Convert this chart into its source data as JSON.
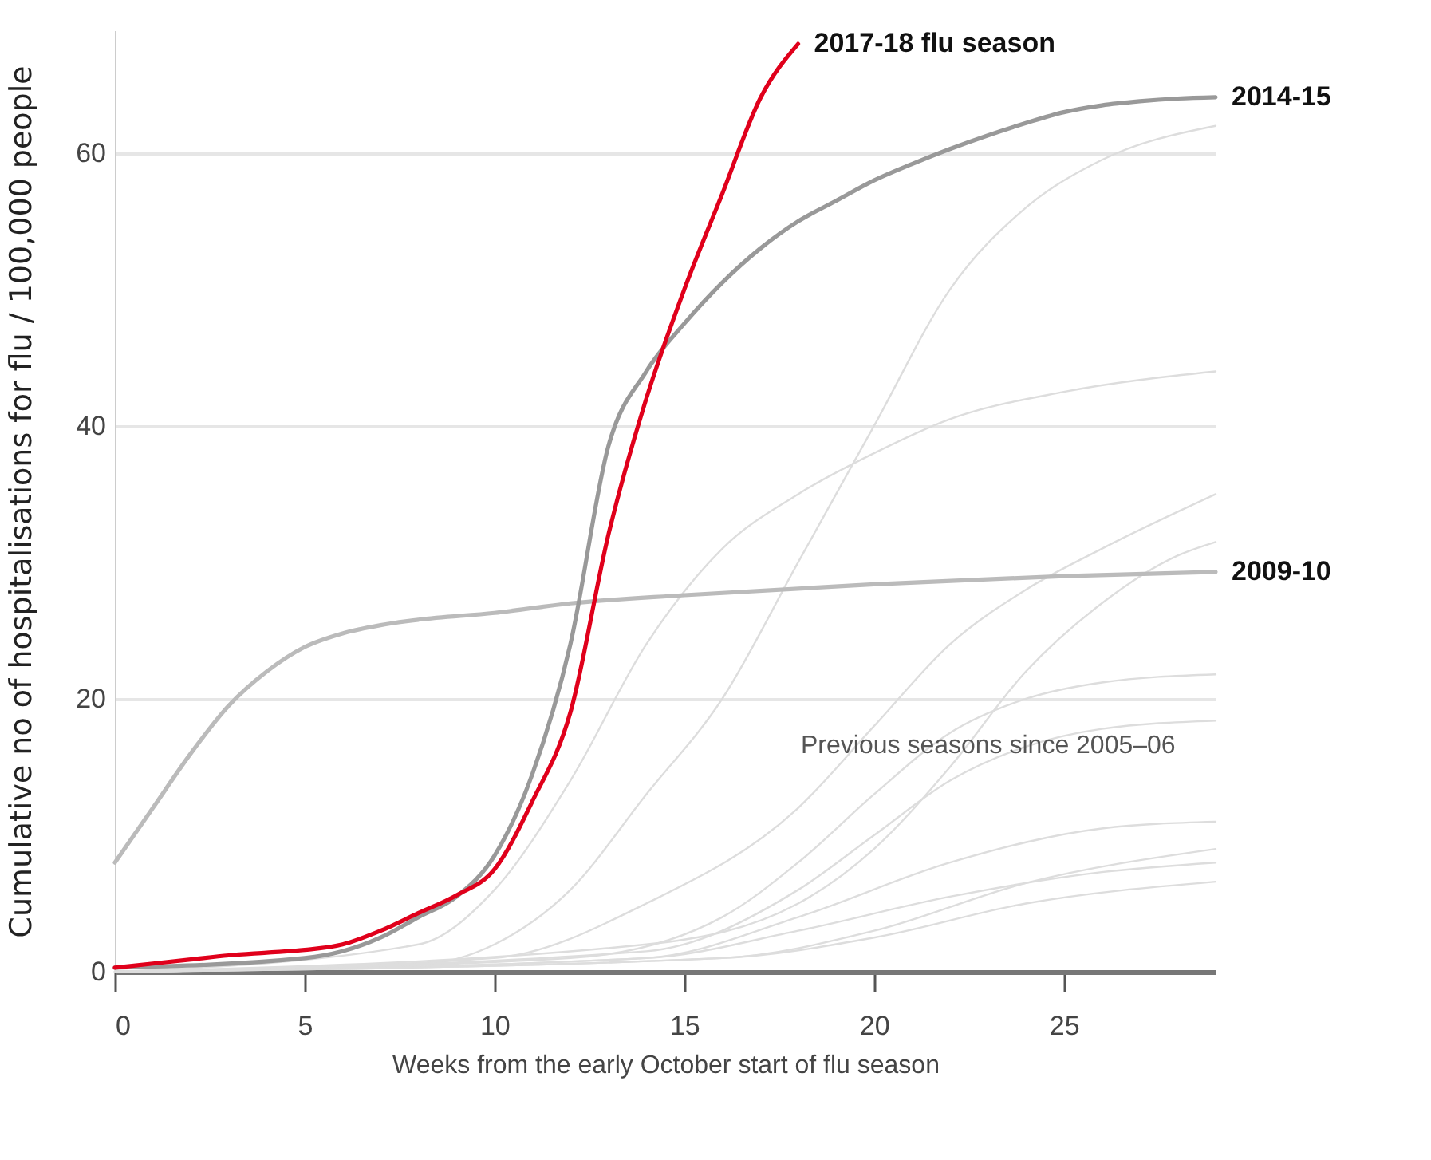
{
  "chart_data": {
    "type": "line",
    "xlabel": "Weeks from the early October start of flu season",
    "ylabel": "Cumulative no of hospitalisations for flu / 100,000 people",
    "xlim": [
      0,
      29
    ],
    "ylim": [
      0,
      69
    ],
    "xticks": [
      0,
      5,
      10,
      15,
      20,
      25
    ],
    "yticks": [
      0,
      20,
      40,
      60
    ],
    "grid": "y",
    "annotations": [
      "Previous seasons since 2005–06"
    ],
    "series": [
      {
        "color": "#dddddd",
        "x": [
          0,
          8,
          10,
          12,
          14,
          16,
          18,
          20,
          22,
          24,
          26,
          29
        ],
        "values": [
          0,
          0.5,
          2,
          6,
          13,
          20,
          30,
          40,
          50,
          56,
          59.5,
          62
        ]
      },
      {
        "color": "#dddddd",
        "x": [
          0,
          8,
          10,
          12,
          14,
          16,
          18,
          20,
          22,
          25,
          29
        ],
        "values": [
          0,
          2,
          6,
          14,
          24,
          31,
          35,
          38,
          40.5,
          42.5,
          44
        ]
      },
      {
        "color": "#dddddd",
        "x": [
          0,
          10,
          14,
          18,
          20,
          22,
          24,
          26,
          29
        ],
        "values": [
          0,
          1,
          5,
          12,
          18,
          24,
          28,
          31,
          35
        ]
      },
      {
        "color": "#dddddd",
        "x": [
          0,
          14,
          18,
          20,
          22,
          24,
          26,
          28,
          29
        ],
        "values": [
          0,
          2,
          5,
          9,
          15,
          22,
          27,
          30.5,
          31.5
        ]
      },
      {
        "color": "#dddddd",
        "x": [
          0,
          12,
          16,
          18,
          20,
          22,
          24,
          26,
          29
        ],
        "values": [
          0,
          1,
          4,
          8,
          13,
          17.5,
          20,
          21.2,
          21.8
        ]
      },
      {
        "color": "#dddddd",
        "x": [
          0,
          14,
          18,
          20,
          22,
          24,
          26,
          29
        ],
        "values": [
          0,
          1.5,
          6,
          10,
          14,
          16.5,
          17.8,
          18.4
        ]
      },
      {
        "color": "#dddddd",
        "x": [
          0,
          14,
          18,
          22,
          26,
          29
        ],
        "values": [
          0,
          1,
          4,
          8,
          10.5,
          11
        ]
      },
      {
        "color": "#dddddd",
        "x": [
          0,
          16,
          20,
          24,
          29
        ],
        "values": [
          0,
          1,
          3,
          6.5,
          9
        ]
      },
      {
        "color": "#dddddd",
        "x": [
          0,
          14,
          18,
          22,
          26,
          29
        ],
        "values": [
          0,
          1,
          3,
          5.5,
          7.3,
          8
        ]
      },
      {
        "color": "#dddddd",
        "x": [
          0,
          16,
          20,
          24,
          29
        ],
        "values": [
          0,
          1,
          2.5,
          5,
          6.6
        ]
      },
      {
        "name": "2009-10",
        "color": "#bbbbbb",
        "x": [
          0,
          1,
          2,
          3,
          4,
          5,
          6,
          7,
          8,
          10,
          12,
          15,
          20,
          25,
          29
        ],
        "values": [
          8,
          12,
          16,
          19.5,
          22,
          23.8,
          24.8,
          25.4,
          25.8,
          26.3,
          27,
          27.6,
          28.4,
          29,
          29.3
        ]
      },
      {
        "name": "2014-15",
        "color": "#999999",
        "x": [
          0,
          5,
          6,
          7,
          8,
          9,
          10,
          11,
          12,
          13,
          14,
          15,
          16,
          17,
          18,
          19,
          20,
          21,
          22,
          23,
          24,
          25,
          26,
          27,
          28,
          29
        ],
        "values": [
          0.3,
          1,
          1.5,
          2.5,
          4,
          5.5,
          8.5,
          14.5,
          24,
          38.5,
          44,
          47.5,
          50.5,
          53,
          55,
          56.5,
          58,
          59.2,
          60.3,
          61.3,
          62.2,
          63,
          63.5,
          63.8,
          64,
          64.1
        ]
      },
      {
        "name": "2017-18 flu season",
        "color": "#e0001b",
        "x": [
          0,
          1,
          2,
          3,
          4,
          5,
          6,
          7,
          8,
          9,
          10,
          11,
          12,
          13,
          14,
          15,
          16,
          17,
          18
        ],
        "values": [
          0.3,
          0.6,
          0.9,
          1.2,
          1.4,
          1.6,
          2,
          3,
          4.3,
          5.6,
          7.5,
          12.5,
          19,
          32,
          42,
          50,
          57,
          64,
          68
        ]
      }
    ]
  }
}
